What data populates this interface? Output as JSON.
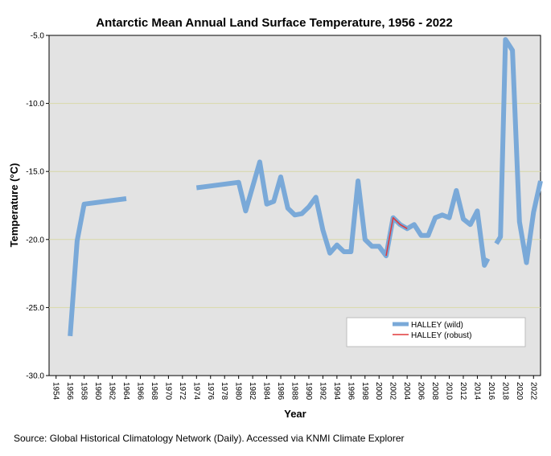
{
  "chart_data": {
    "type": "line",
    "title": "Antarctic Mean Annual Land Surface Temperature, 1956 - 2022",
    "xlabel": "Year",
    "ylabel": "Temperature (°C)",
    "xlim": [
      1953,
      2023
    ],
    "ylim": [
      -30.0,
      -5.0
    ],
    "x_ticks": [
      1954,
      1956,
      1958,
      1960,
      1962,
      1964,
      1966,
      1968,
      1970,
      1972,
      1974,
      1976,
      1978,
      1980,
      1982,
      1984,
      1986,
      1988,
      1990,
      1992,
      1994,
      1996,
      1998,
      2000,
      2002,
      2004,
      2006,
      2008,
      2010,
      2012,
      2014,
      2016,
      2018,
      2020,
      2022
    ],
    "y_ticks": [
      -5.0,
      -10.0,
      -15.0,
      -20.0,
      -25.0,
      -30.0
    ],
    "y_gridlines": [
      -10.0,
      -15.0,
      -20.0,
      -25.0
    ],
    "plot_background": "#e3e3e3",
    "gridline_color": "#d8d8a8",
    "legend_position": "bottom-right",
    "series": [
      {
        "name": "HALLEY (wild)",
        "color": "#7aa9d8",
        "segments": [
          [
            [
              1956,
              -27.1
            ],
            [
              1957,
              -20.1
            ],
            [
              1958,
              -17.4
            ],
            [
              1964,
              -17.0
            ]
          ],
          [
            [
              1974,
              -16.2
            ],
            [
              1980,
              -15.8
            ],
            [
              1981,
              -17.9
            ],
            [
              1983,
              -14.3
            ],
            [
              1984,
              -17.4
            ],
            [
              1985,
              -17.2
            ],
            [
              1986,
              -15.4
            ],
            [
              1987,
              -17.7
            ],
            [
              1988,
              -18.2
            ],
            [
              1989,
              -18.1
            ],
            [
              1990,
              -17.6
            ],
            [
              1991,
              -16.9
            ],
            [
              1992,
              -19.3
            ],
            [
              1993,
              -21.0
            ],
            [
              1994,
              -20.4
            ],
            [
              1995,
              -20.9
            ],
            [
              1996,
              -20.9
            ],
            [
              1997,
              -15.7
            ],
            [
              1998,
              -20.0
            ],
            [
              1999,
              -20.5
            ],
            [
              2000,
              -20.5
            ],
            [
              2001,
              -21.2
            ],
            [
              2002,
              -18.4
            ],
            [
              2003,
              -18.9
            ],
            [
              2004,
              -19.2
            ],
            [
              2005,
              -18.9
            ],
            [
              2006,
              -19.7
            ],
            [
              2007,
              -19.7
            ],
            [
              2008,
              -18.4
            ],
            [
              2009,
              -18.2
            ],
            [
              2010,
              -18.4
            ],
            [
              2011,
              -16.4
            ],
            [
              2012,
              -18.5
            ],
            [
              2013,
              -18.9
            ],
            [
              2014,
              -17.9
            ],
            [
              2015,
              -21.9
            ],
            [
              2015.5,
              -21.4
            ]
          ],
          [
            [
              2016.7,
              -20.3
            ],
            [
              2017.3,
              -19.8
            ],
            [
              2018,
              -5.3
            ],
            [
              2019,
              -6.1
            ],
            [
              2020,
              -18.7
            ],
            [
              2021,
              -21.7
            ],
            [
              2022,
              -18.0
            ],
            [
              2023,
              -15.7
            ]
          ]
        ]
      },
      {
        "name": "HALLEY (robust)",
        "color": "#e0383a",
        "segments": [
          [
            [
              2001,
              -21.2
            ],
            [
              2002,
              -18.4
            ],
            [
              2003,
              -18.9
            ],
            [
              2004,
              -19.2
            ]
          ]
        ]
      }
    ]
  },
  "source_text": "Source: Global Historical Climatology Network (Daily). Accessed via KNMI Climate Explorer"
}
